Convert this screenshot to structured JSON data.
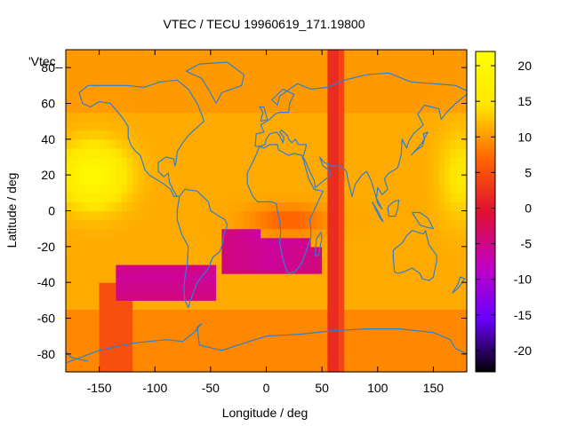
{
  "chart_data": {
    "type": "heatmap",
    "title": "VTEC / TECU 19960619_171.19800",
    "xlabel": "Longitude / deg",
    "ylabel": "Latitude / deg",
    "key_label": "'Vtec_",
    "xlim": [
      -180,
      180
    ],
    "ylim": [
      -90,
      90
    ],
    "x_ticks": [
      -150,
      -100,
      -50,
      0,
      50,
      100,
      150
    ],
    "y_ticks": [
      -80,
      -60,
      -40,
      -20,
      0,
      20,
      40,
      60,
      80
    ],
    "colorbar": {
      "range": [
        -23,
        22
      ],
      "ticks": [
        -20,
        -15,
        -10,
        -5,
        0,
        5,
        10,
        15,
        20
      ],
      "palette": [
        "#000000",
        "#6a00ff",
        "#c400c0",
        "#e01030",
        "#ff6600",
        "#ffe600",
        "#ffff00"
      ]
    },
    "features": [
      {
        "name": "base_level",
        "value": 11
      },
      {
        "name": "equatorial_anomaly_pacific",
        "lon": -155,
        "lat": 20,
        "peak": 20
      },
      {
        "name": "south_pacific_low",
        "lon": -100,
        "lat": -38,
        "min": -6
      },
      {
        "name": "south_atlantic_low",
        "lon": 5,
        "lat": -25,
        "min": -6
      },
      {
        "name": "equatorial_low",
        "lon": 20,
        "lat": -5,
        "min": 2
      },
      {
        "name": "meridional_stripe",
        "lon": [
          55,
          72
        ],
        "value": 2
      },
      {
        "name": "east_enhancement",
        "lon": 175,
        "lat": 20,
        "peak": 15
      }
    ]
  }
}
